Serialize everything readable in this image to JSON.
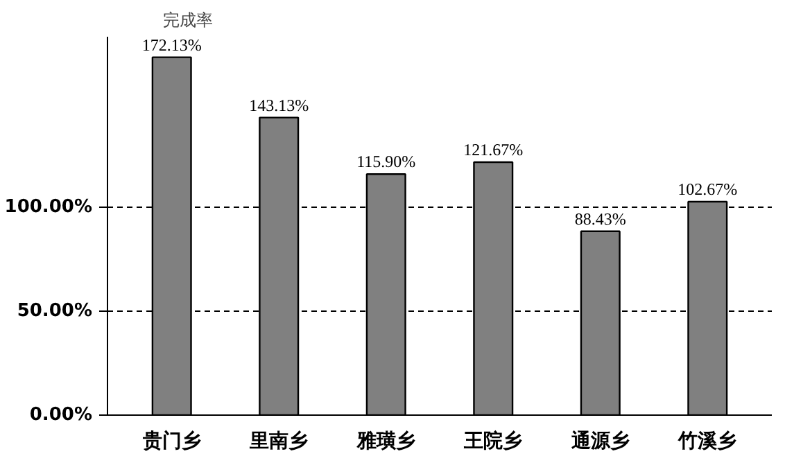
{
  "chart_data": {
    "type": "bar",
    "ylabel": "完成率",
    "categories": [
      "贵门乡",
      "里南乡",
      "雅璜乡",
      "王院乡",
      "通源乡",
      "竹溪乡"
    ],
    "values": [
      172.13,
      143.13,
      115.9,
      121.67,
      88.43,
      102.67
    ],
    "value_labels": [
      "172.13%",
      "143.13%",
      "115.90%",
      "121.67%",
      "88.43%",
      "102.67%"
    ],
    "color": "#808080",
    "ylim": [
      0,
      182
    ],
    "yticks": [
      {
        "value": 0,
        "label": "0.00%"
      },
      {
        "value": 50,
        "label": "50.00%"
      },
      {
        "value": 100,
        "label": "100.00%"
      }
    ],
    "grid": "y"
  }
}
